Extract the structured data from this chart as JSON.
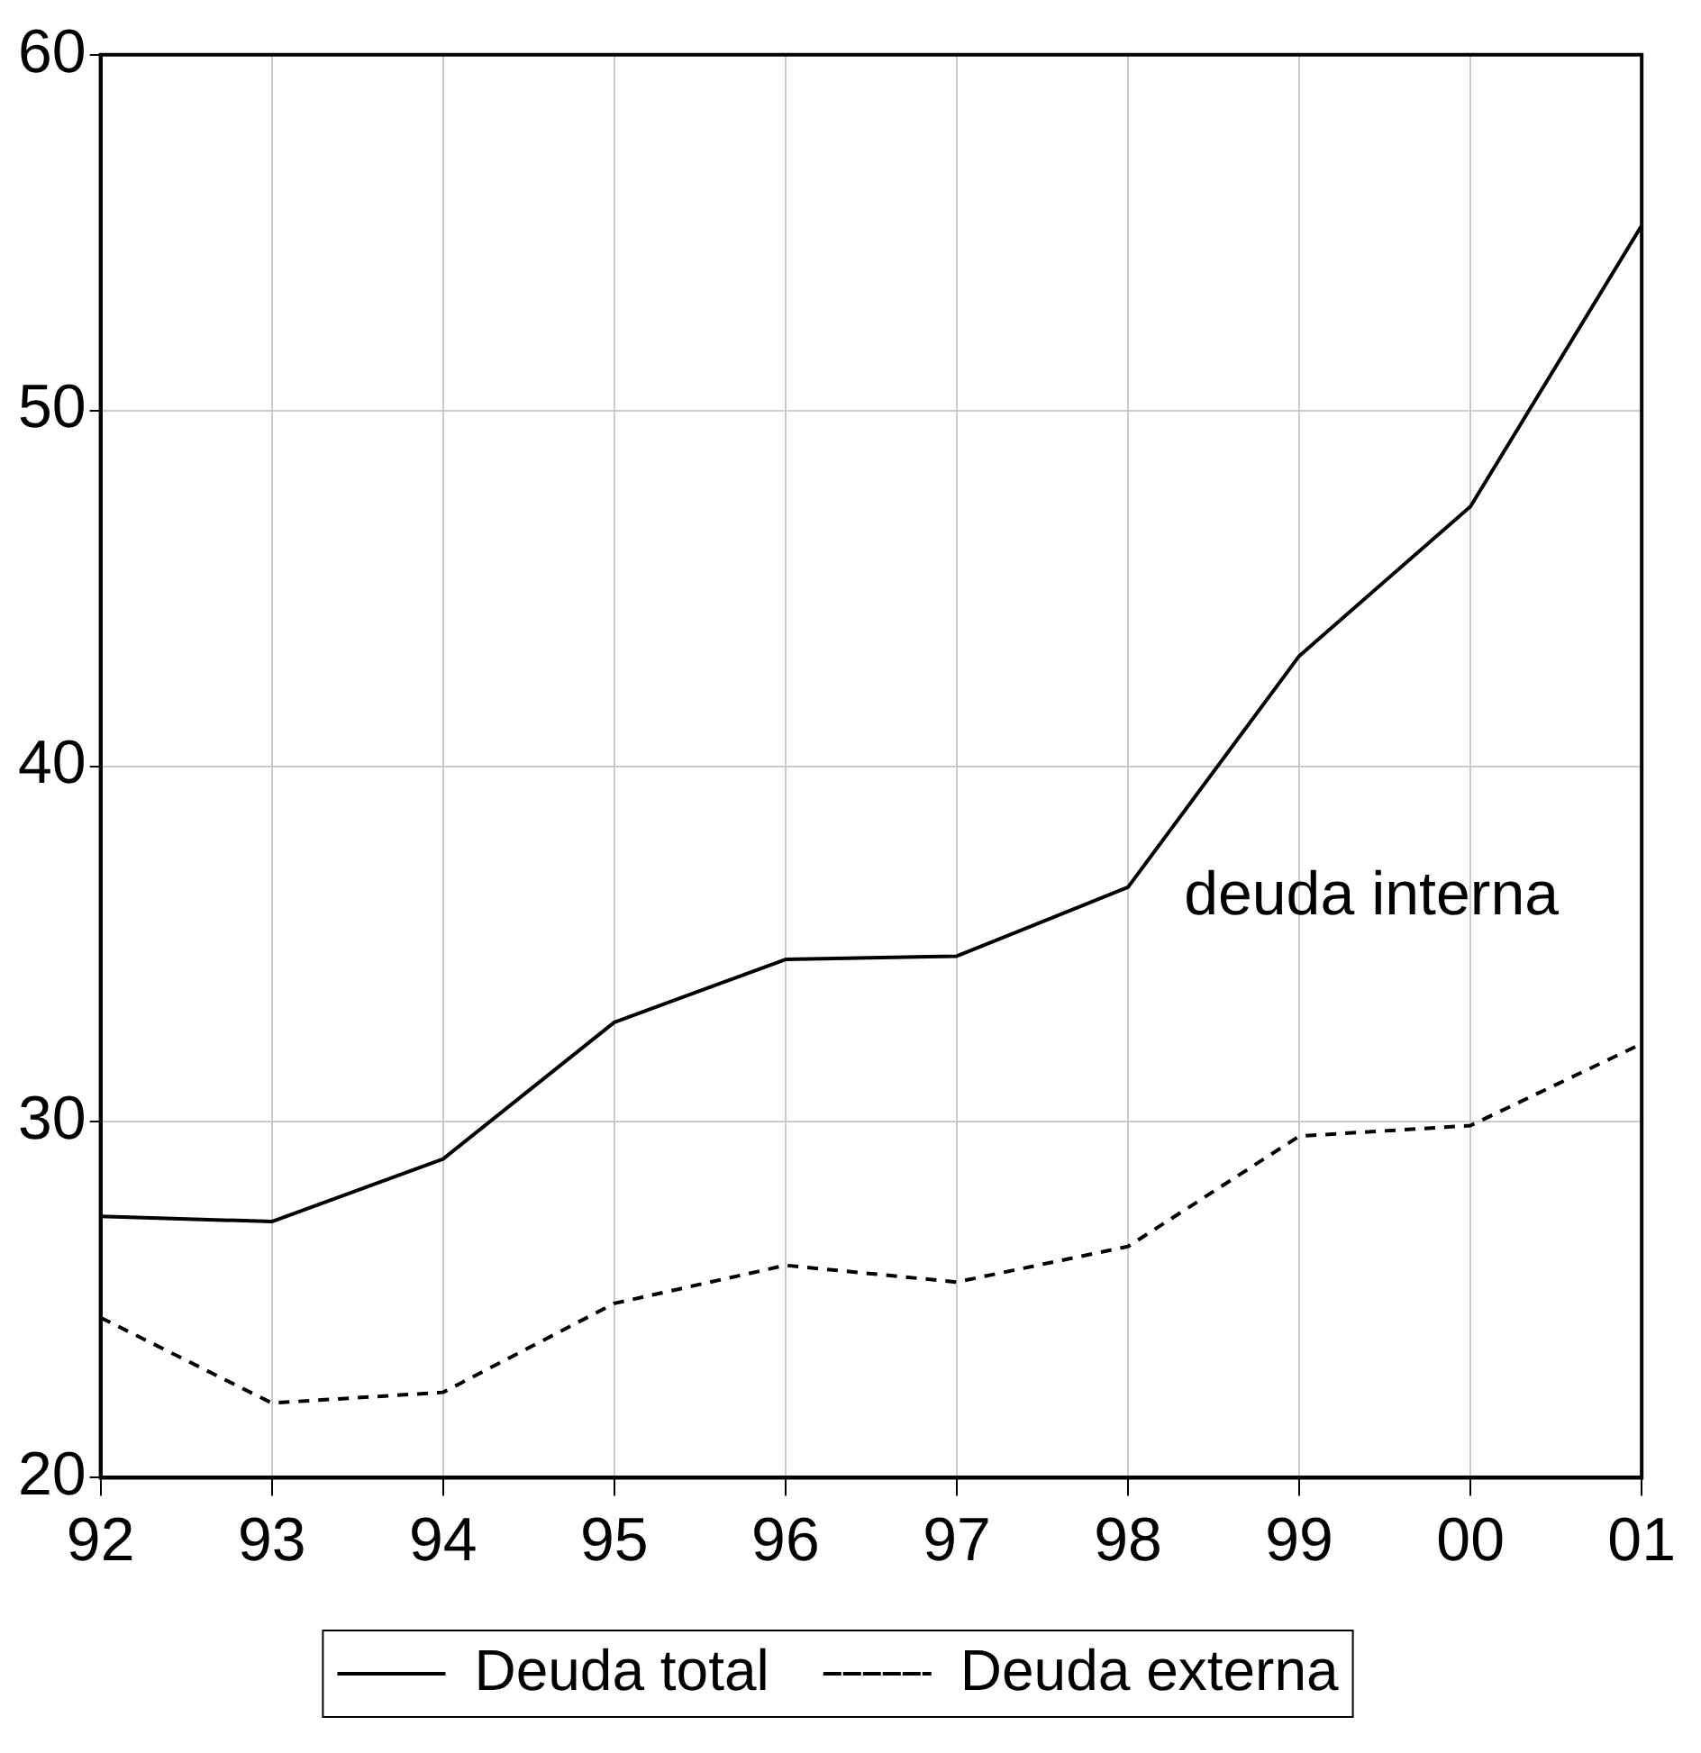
{
  "chart_data": {
    "type": "line",
    "categories": [
      "92",
      "93",
      "94",
      "95",
      "96",
      "97",
      "98",
      "99",
      "00",
      "01"
    ],
    "series": [
      {
        "name": "Deuda total",
        "color": "#000000",
        "line_style": "solid",
        "values": [
          27.35,
          27.2,
          28.96,
          32.8,
          34.57,
          34.66,
          36.6,
          43.1,
          47.3,
          55.2
        ]
      },
      {
        "name": "Deuda externa",
        "color": "#000000",
        "line_style": "dashed",
        "values": [
          24.5,
          22.1,
          22.4,
          24.9,
          25.97,
          25.5,
          26.5,
          29.6,
          29.9,
          32.2
        ]
      }
    ],
    "ylim": [
      20,
      60
    ],
    "yticks": [
      20,
      30,
      40,
      50,
      60
    ],
    "grid": true,
    "legend": "bottom",
    "marker": "none",
    "annotations": [
      "deuda interna"
    ]
  }
}
